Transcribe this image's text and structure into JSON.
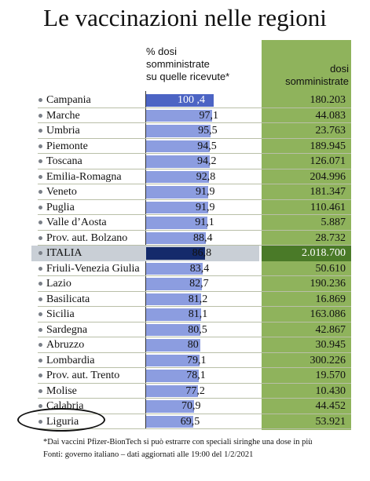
{
  "chart_data": {
    "type": "bar",
    "title": "Le vaccinazioni nelle regioni",
    "pct_header": [
      "% dosi",
      "somministrate",
      "su quelle ricevute*"
    ],
    "doses_header": [
      "dosi",
      "somministrate"
    ],
    "rows": [
      {
        "region": "Campania",
        "pct": 100.4,
        "pct_label": "100 ,4",
        "doses": "180.203"
      },
      {
        "region": "Marche",
        "pct": 97.1,
        "pct_label": "97,1",
        "doses": "44.083"
      },
      {
        "region": "Umbria",
        "pct": 95.5,
        "pct_label": "95,5",
        "doses": "23.763"
      },
      {
        "region": "Piemonte",
        "pct": 94.5,
        "pct_label": "94,5",
        "doses": "189.945"
      },
      {
        "region": "Toscana",
        "pct": 94.2,
        "pct_label": "94,2",
        "doses": "126.071"
      },
      {
        "region": "Emilia-Romagna",
        "pct": 92.8,
        "pct_label": "92,8",
        "doses": "204.996"
      },
      {
        "region": "Veneto",
        "pct": 91.9,
        "pct_label": "91,9",
        "doses": "181.347"
      },
      {
        "region": "Puglia",
        "pct": 91.9,
        "pct_label": "91,9",
        "doses": "110.461"
      },
      {
        "region": "Valle d’Aosta",
        "pct": 91.1,
        "pct_label": "91,1",
        "doses": "5.887"
      },
      {
        "region": "Prov. aut. Bolzano",
        "pct": 88.4,
        "pct_label": "88,4",
        "doses": "28.732"
      },
      {
        "region": "ITALIA",
        "pct": 86.8,
        "pct_label": "86,8",
        "doses": "2.018.700",
        "highlight": true
      },
      {
        "region": "Friuli-Venezia Giulia",
        "pct": 83.4,
        "pct_label": "83,4",
        "doses": "50.610"
      },
      {
        "region": "Lazio",
        "pct": 82.7,
        "pct_label": "82,7",
        "doses": "190.236"
      },
      {
        "region": "Basilicata",
        "pct": 81.2,
        "pct_label": "81,2",
        "doses": "16.869"
      },
      {
        "region": "Sicilia",
        "pct": 81.1,
        "pct_label": "81,1",
        "doses": "163.086"
      },
      {
        "region": "Sardegna",
        "pct": 80.5,
        "pct_label": "80,5",
        "doses": "42.867"
      },
      {
        "region": "Abruzzo",
        "pct": 80,
        "pct_label": "80",
        "doses": "30.945"
      },
      {
        "region": "Lombardia",
        "pct": 79.1,
        "pct_label": "79,1",
        "doses": "300.226"
      },
      {
        "region": "Prov. aut. Trento",
        "pct": 78.1,
        "pct_label": "78,1",
        "doses": "19.570"
      },
      {
        "region": "Molise",
        "pct": 77.2,
        "pct_label": "77,2",
        "doses": "10.430"
      },
      {
        "region": "Calabria",
        "pct": 70.9,
        "pct_label": "70,9",
        "doses": "44.452"
      },
      {
        "region": "Liguria",
        "pct": 69.5,
        "pct_label": "69,5",
        "doses": "53.921",
        "circled": true
      }
    ],
    "footnote": "*Dai vaccini Pfizer-BionTech si può estrarre con speciali siringhe una dose in più",
    "source": "Fonti: governo italiano – dati aggiornati alle 19:00 del 1/2/2021",
    "colors": {
      "bar": "#8c9de0",
      "bar_top": "#4c64c4",
      "bar_italia": "#142a6b",
      "doses_column": "#8fb35c",
      "doses_italia": "#4a7a28",
      "italia_band": "#c9cfd6"
    }
  }
}
